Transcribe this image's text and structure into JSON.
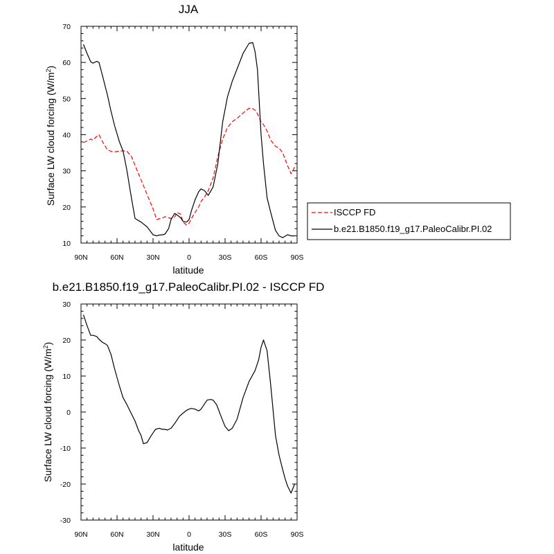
{
  "chart_data": [
    {
      "type": "line",
      "title": "JJA",
      "xlabel": "latitude",
      "ylabel": "Surface LW cloud forcing (W/m",
      "ylabel_sup": "2",
      "ylabel_end": ")",
      "xlim": [
        90,
        -90
      ],
      "ylim": [
        10,
        70
      ],
      "x_ticks": [
        90,
        60,
        30,
        0,
        -30,
        -60,
        -90
      ],
      "x_tick_labels": [
        "90N",
        "60N",
        "30N",
        "0",
        "30S",
        "60S",
        "90S"
      ],
      "y_ticks": [
        10,
        20,
        30,
        40,
        50,
        60,
        70
      ],
      "y_tick_labels": [
        "10",
        "20",
        "30",
        "40",
        "50",
        "60",
        "70"
      ],
      "legend_position": "right",
      "series": [
        {
          "name": "ISCCP FD",
          "color": "#ff0000",
          "dash": "dashed",
          "x": [
            88,
            85,
            82,
            80,
            77,
            75,
            72,
            68,
            65,
            62,
            58,
            55,
            52,
            48,
            45,
            40,
            35,
            30,
            27,
            25,
            22,
            20,
            17,
            15,
            12,
            10,
            7,
            5,
            2,
            0,
            -2,
            -5,
            -8,
            -10,
            -13,
            -16,
            -20,
            -24,
            -28,
            -32,
            -36,
            -40,
            -45,
            -50,
            -53,
            -55,
            -57,
            -60,
            -62,
            -65,
            -68,
            -72,
            -75,
            -78,
            -82,
            -85,
            -88
          ],
          "y": [
            37.8,
            38.3,
            38.8,
            38.5,
            39.5,
            40,
            38,
            35.8,
            35.4,
            35.2,
            35.5,
            35.5,
            35.5,
            34,
            31.5,
            27.5,
            23.5,
            19.5,
            16.5,
            16.7,
            17,
            17.3,
            17,
            16.8,
            17.2,
            18.5,
            18,
            15.8,
            15,
            15.5,
            16.8,
            18.5,
            20,
            21.5,
            22.8,
            24.5,
            28,
            34,
            38.8,
            42,
            43.6,
            44.5,
            46,
            47.3,
            47.2,
            46.8,
            45.8,
            43.5,
            42.8,
            41,
            38.5,
            36.8,
            36.3,
            35,
            31.5,
            29.2,
            31
          ]
        },
        {
          "name": "b.e21.B1850.f19_g17.PaleoCalibr.PI.02",
          "color": "#000000",
          "dash": "solid",
          "x": [
            88,
            85,
            82,
            80,
            77,
            75,
            72,
            68,
            65,
            62,
            58,
            55,
            52,
            48,
            45,
            40,
            35,
            30,
            27,
            25,
            22,
            20,
            17,
            15,
            12,
            10,
            7,
            5,
            2,
            0,
            -2,
            -5,
            -8,
            -10,
            -13,
            -16,
            -20,
            -24,
            -28,
            -32,
            -36,
            -40,
            -45,
            -50,
            -53,
            -55,
            -57,
            -60,
            -62,
            -65,
            -68,
            -72,
            -75,
            -78,
            -82,
            -85,
            -88
          ],
          "y": [
            65,
            62.5,
            60.2,
            59.8,
            60.3,
            60,
            56.2,
            51,
            46.5,
            42.5,
            38,
            35.5,
            30.5,
            22.5,
            16.8,
            15.8,
            14.5,
            12.3,
            12,
            12.2,
            12.3,
            12.5,
            14,
            16.5,
            18.2,
            17.8,
            17,
            16,
            15.8,
            16.5,
            19,
            22,
            24.2,
            25,
            24.5,
            23.2,
            25.5,
            32,
            43.5,
            50.5,
            54.8,
            58.2,
            62.5,
            65.3,
            65.5,
            63,
            58,
            40,
            32,
            22.5,
            18.5,
            13.5,
            12,
            11.5,
            12.3,
            12,
            12
          ]
        }
      ]
    },
    {
      "type": "line",
      "title": "b.e21.B1850.f19_g17.PaleoCalibr.PI.02 - ISCCP FD",
      "xlabel": "latitude",
      "ylabel": "Surface LW cloud forcing (W/m",
      "ylabel_sup": "2",
      "ylabel_end": ")",
      "xlim": [
        90,
        -90
      ],
      "ylim": [
        -30,
        30
      ],
      "x_ticks": [
        90,
        60,
        30,
        0,
        -30,
        -60,
        -90
      ],
      "x_tick_labels": [
        "90N",
        "60N",
        "30N",
        "0",
        "30S",
        "60S",
        "90S"
      ],
      "y_ticks": [
        -30,
        -20,
        -10,
        0,
        10,
        20,
        30
      ],
      "y_tick_labels": [
        "-30",
        "-20",
        "-10",
        "0",
        "10",
        "20",
        "30"
      ],
      "series": [
        {
          "color": "#000000",
          "dash": "solid",
          "x": [
            88,
            85,
            82,
            80,
            77,
            75,
            72,
            70,
            68,
            65,
            62,
            58,
            55,
            52,
            48,
            45,
            42,
            40,
            38,
            35,
            32,
            30,
            28,
            25,
            22,
            20,
            18,
            15,
            12,
            10,
            8,
            5,
            2,
            0,
            -2,
            -5,
            -8,
            -10,
            -12,
            -15,
            -18,
            -20,
            -23,
            -27,
            -30,
            -33,
            -36,
            -40,
            -45,
            -50,
            -55,
            -58,
            -60,
            -62,
            -65,
            -68,
            -72,
            -75,
            -78,
            -80,
            -82,
            -85,
            -88
          ],
          "y": [
            27,
            24,
            21.3,
            21.3,
            21,
            20.2,
            19.3,
            19,
            18.5,
            16,
            12,
            7.2,
            4,
            2.2,
            -0.5,
            -2.5,
            -5.2,
            -6.5,
            -8.8,
            -8.5,
            -6.8,
            -5.8,
            -4.8,
            -4.5,
            -4.8,
            -4.8,
            -5,
            -4.5,
            -3.2,
            -2.2,
            -1.2,
            -0.3,
            0.5,
            0.8,
            1,
            0.8,
            0.3,
            0.8,
            1.8,
            3.3,
            3.5,
            3.3,
            2,
            -1.5,
            -4,
            -5.2,
            -4.5,
            -2,
            4,
            8.5,
            11.5,
            14.5,
            18,
            20,
            17,
            7.5,
            -6.5,
            -12,
            -16,
            -18.5,
            -20.5,
            -22.5,
            -20
          ]
        }
      ]
    }
  ]
}
